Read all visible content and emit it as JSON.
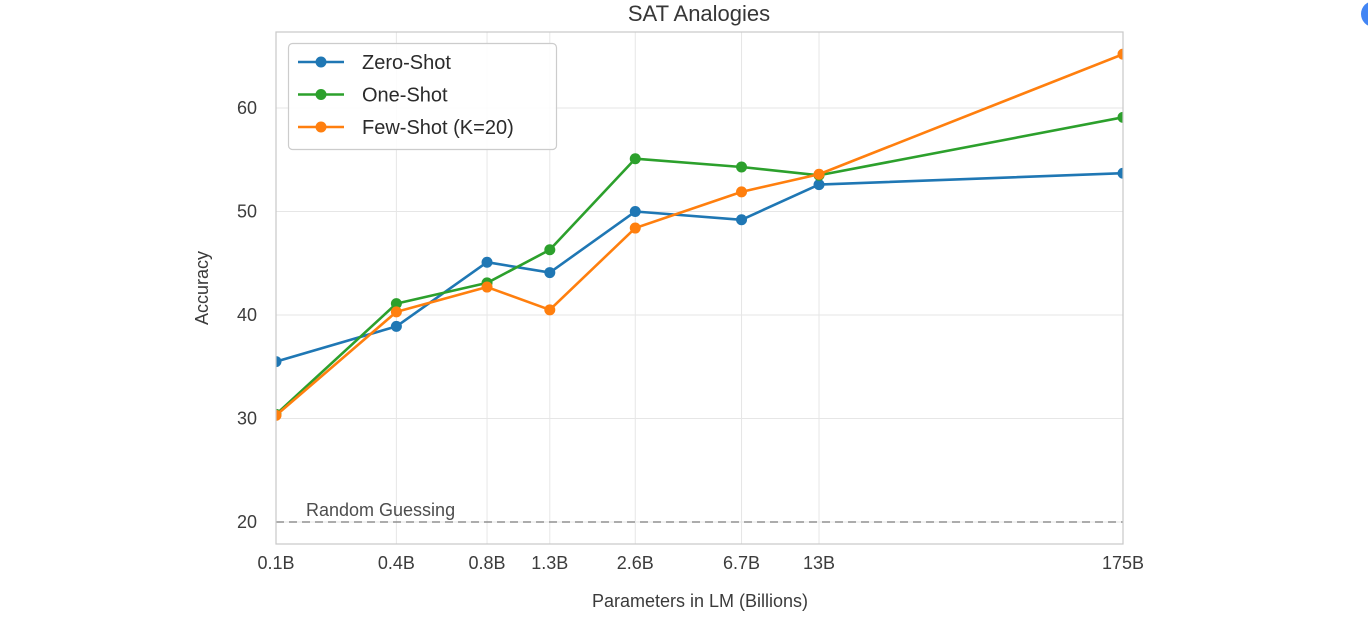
{
  "page": {
    "background": "#ffffff"
  },
  "floating_button": {
    "color": "#4285f4"
  },
  "chart_data": {
    "type": "line",
    "title": "SAT Analogies",
    "xlabel": "Parameters in LM (Billions)",
    "ylabel": "Accuracy",
    "x_scale": "log",
    "categories": [
      "0.1B",
      "0.4B",
      "0.8B",
      "1.3B",
      "2.6B",
      "6.7B",
      "13B",
      "175B"
    ],
    "x_values": [
      0.125,
      0.35,
      0.76,
      1.3,
      2.7,
      6.7,
      13,
      175
    ],
    "yticks": [
      20,
      30,
      40,
      50,
      60
    ],
    "ylim": [
      17.9,
      67.4
    ],
    "grid": true,
    "grid_color": "#e6e6e6",
    "plot_border_color": "#c8c8c8",
    "legend_position": "upper-left",
    "series": [
      {
        "name": "Zero-Shot",
        "color": "#1f77b4",
        "values": [
          35.5,
          38.9,
          45.1,
          44.1,
          50.0,
          49.2,
          52.6,
          53.7
        ]
      },
      {
        "name": "One-Shot",
        "color": "#2ca02c",
        "values": [
          30.4,
          41.1,
          43.1,
          46.3,
          55.1,
          54.3,
          53.5,
          59.1
        ]
      },
      {
        "name": "Few-Shot (K=20)",
        "color": "#ff7f0e",
        "values": [
          30.3,
          40.3,
          42.7,
          40.5,
          48.4,
          51.9,
          53.6,
          65.2
        ]
      }
    ],
    "baseline": {
      "label": "Random Guessing",
      "value": 20,
      "color": "#909090",
      "style": "dashed"
    }
  }
}
